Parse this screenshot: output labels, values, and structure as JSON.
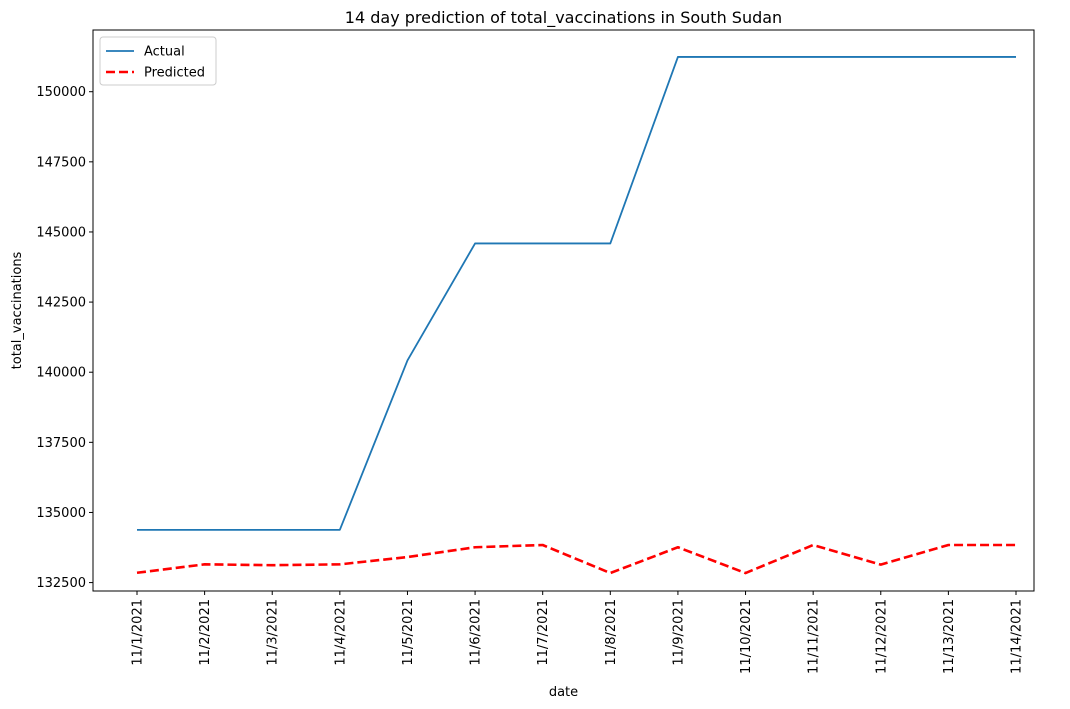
{
  "chart_data": {
    "type": "line",
    "title": "14 day prediction of total_vaccinations in South Sudan",
    "xlabel": "date",
    "ylabel": "total_vaccinations",
    "categories": [
      "11/1/2021",
      "11/2/2021",
      "11/3/2021",
      "11/4/2021",
      "11/5/2021",
      "11/6/2021",
      "11/7/2021",
      "11/8/2021",
      "11/9/2021",
      "11/10/2021",
      "11/11/2021",
      "11/12/2021",
      "11/13/2021",
      "11/14/2021"
    ],
    "yticks": [
      132500,
      135000,
      137500,
      140000,
      142500,
      145000,
      147500,
      150000
    ],
    "ylim": [
      132200,
      152200
    ],
    "grid": false,
    "legend_position": "top-left",
    "series": [
      {
        "name": "Actual",
        "color": "#1f77b4",
        "style": "solid",
        "values": [
          134380,
          134380,
          134380,
          134380,
          140420,
          144590,
          144590,
          144590,
          151240,
          151240,
          151240,
          151240,
          151240,
          151240
        ]
      },
      {
        "name": "Predicted",
        "color": "#ff0000",
        "style": "dashed",
        "values": [
          132850,
          133150,
          133120,
          133150,
          133410,
          133760,
          133840,
          132840,
          133760,
          132840,
          133840,
          133140,
          133840,
          133840
        ]
      }
    ]
  }
}
